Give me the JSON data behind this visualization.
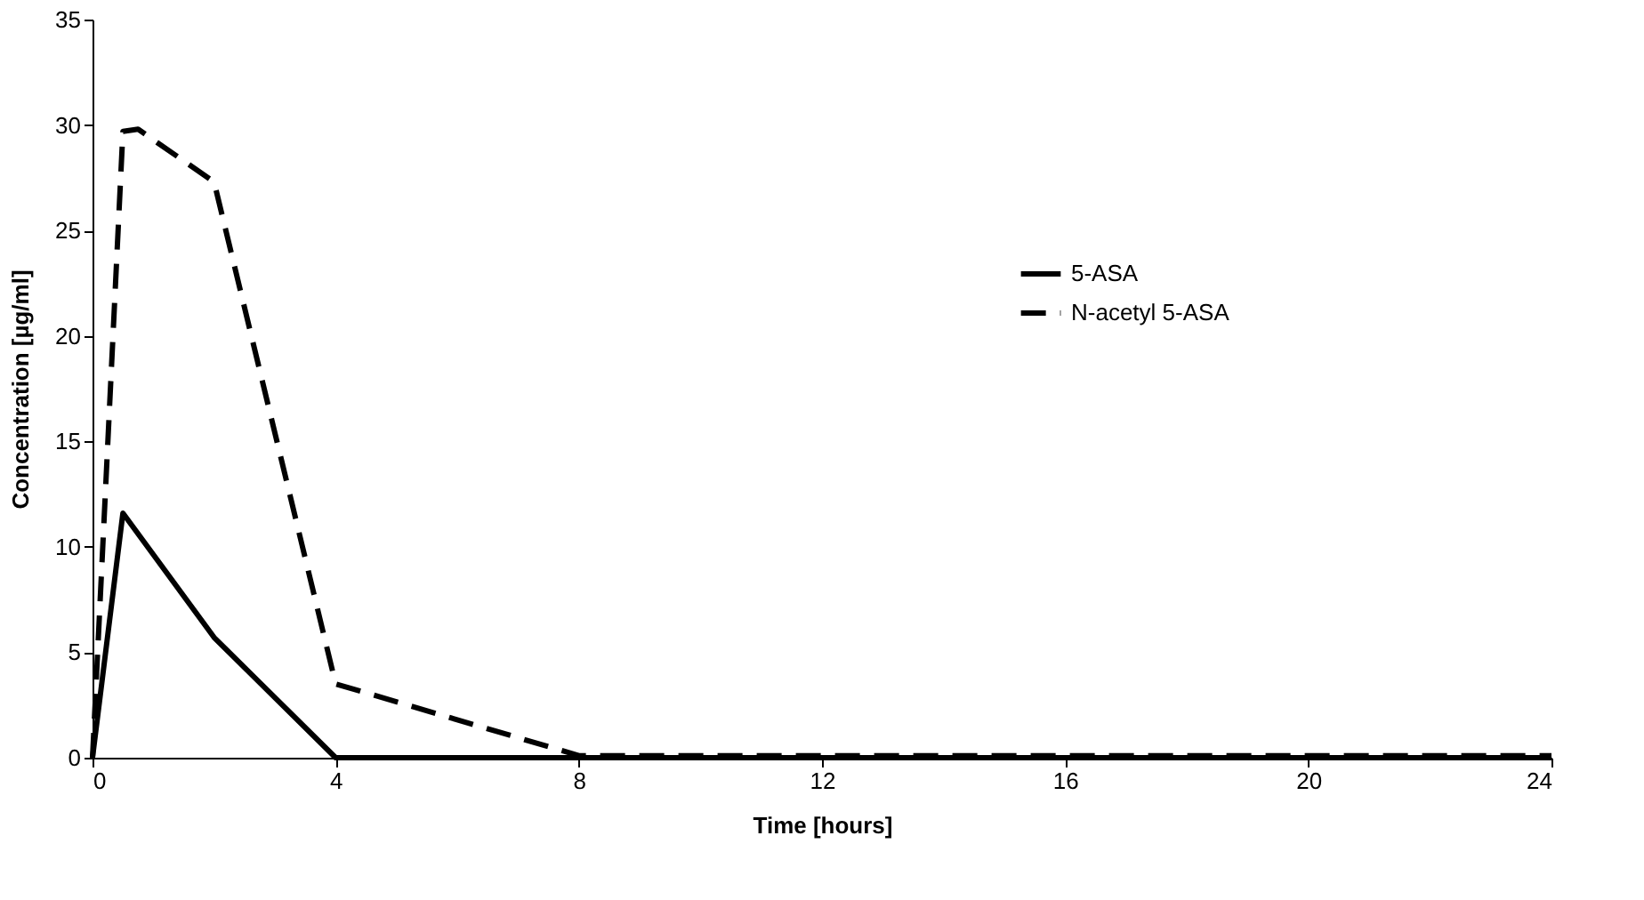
{
  "chart_data": {
    "type": "line",
    "xlabel": "Time [hours]",
    "ylabel": "Concentration [µg/ml]",
    "xlim": [
      0,
      24
    ],
    "xticks": [
      0,
      4,
      8,
      12,
      16,
      20,
      24
    ],
    "ylim": [
      0,
      35
    ],
    "yticks": [
      0,
      5,
      10,
      15,
      20,
      25,
      30,
      35
    ],
    "grid": false,
    "legend": "right",
    "marker": "none",
    "series": [
      {
        "name": "5-ASA",
        "color": "#000000",
        "line_style": "solid",
        "x": [
          0,
          0.5,
          2,
          4,
          8,
          12,
          16,
          20,
          24
        ],
        "values": [
          0,
          11.6,
          5.7,
          0,
          0,
          0,
          0,
          0,
          0
        ]
      },
      {
        "name": "N-acetyl 5-ASA",
        "color": "#000000",
        "line_style": "dashed",
        "x": [
          0,
          0.5,
          0.75,
          2,
          4,
          8,
          12,
          16,
          20,
          24
        ],
        "values": [
          0,
          29.7,
          29.8,
          27.3,
          3.5,
          0.1,
          0.1,
          0.1,
          0.1,
          0.1
        ]
      }
    ]
  }
}
